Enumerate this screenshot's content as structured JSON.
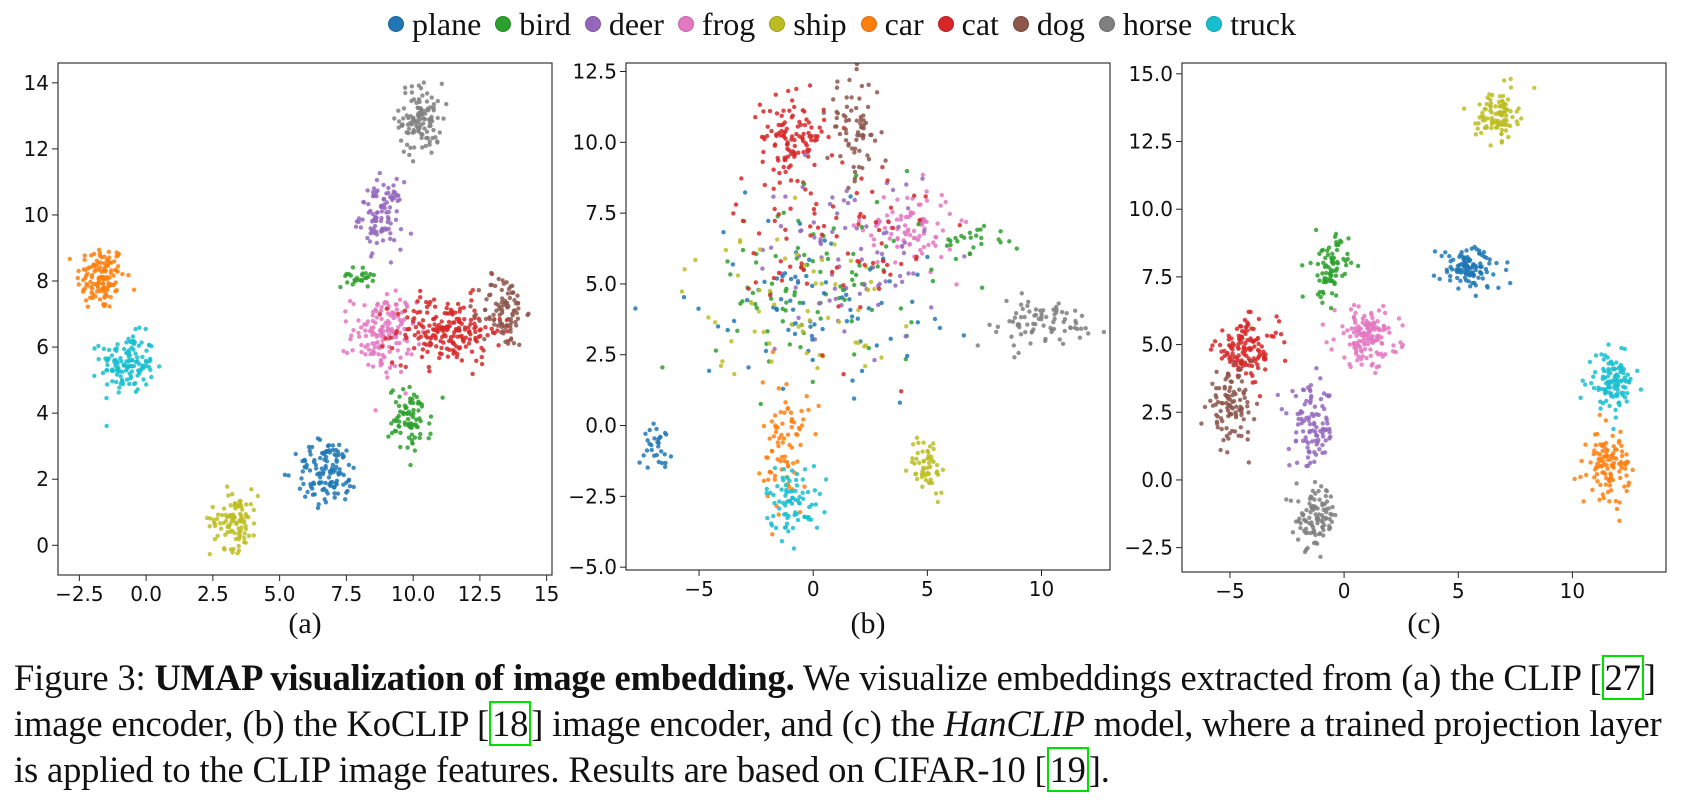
{
  "legend": {
    "classes": [
      {
        "name": "plane",
        "color": "#1f77b4"
      },
      {
        "name": "bird",
        "color": "#2ca02c"
      },
      {
        "name": "deer",
        "color": "#9467bd"
      },
      {
        "name": "frog",
        "color": "#e377c2"
      },
      {
        "name": "ship",
        "color": "#bcbd22"
      },
      {
        "name": "car",
        "color": "#ff7f0e"
      },
      {
        "name": "cat",
        "color": "#d62728"
      },
      {
        "name": "dog",
        "color": "#8c564b"
      },
      {
        "name": "horse",
        "color": "#7f7f7f"
      },
      {
        "name": "truck",
        "color": "#17becf"
      }
    ]
  },
  "chart_data": [
    {
      "type": "scatter",
      "panel_label": "(a)",
      "xlim": [
        -3.3,
        15.2
      ],
      "ylim": [
        -0.9,
        14.6
      ],
      "xticks": [
        -2.5,
        0.0,
        2.5,
        5.0,
        7.5,
        10.0,
        12.5,
        15.0
      ],
      "xtick_labels": [
        "−2.5",
        "0.0",
        "2.5",
        "5.0",
        "7.5",
        "10.0",
        "12.5",
        "15"
      ],
      "yticks": [
        0,
        2,
        4,
        6,
        8,
        10,
        12,
        14
      ],
      "ytick_labels": [
        "0",
        "2",
        "4",
        "6",
        "8",
        "10",
        "12",
        "14"
      ],
      "clusters": [
        {
          "class": "car",
          "cx": -1.7,
          "cy": 8.1,
          "sx": 0.45,
          "sy": 0.5,
          "n": 130
        },
        {
          "class": "truck",
          "cx": -0.7,
          "cy": 5.5,
          "sx": 0.5,
          "sy": 0.45,
          "n": 130
        },
        {
          "class": "horse",
          "cx": 10.3,
          "cy": 12.9,
          "sx": 0.4,
          "sy": 0.55,
          "n": 110
        },
        {
          "class": "deer",
          "cx": 8.8,
          "cy": 10.0,
          "sx": 0.4,
          "sy": 0.5,
          "n": 100
        },
        {
          "class": "bird",
          "cx": 9.9,
          "cy": 3.8,
          "sx": 0.4,
          "sy": 0.5,
          "n": 80
        },
        {
          "class": "bird",
          "cx": 7.9,
          "cy": 8.1,
          "sx": 0.3,
          "sy": 0.15,
          "n": 25
        },
        {
          "class": "frog",
          "cx": 8.9,
          "cy": 6.4,
          "sx": 0.6,
          "sy": 0.6,
          "n": 150
        },
        {
          "class": "cat",
          "cx": 11.3,
          "cy": 6.5,
          "sx": 1.0,
          "sy": 0.5,
          "n": 200
        },
        {
          "class": "dog",
          "cx": 13.4,
          "cy": 7.1,
          "sx": 0.4,
          "sy": 0.55,
          "n": 90
        },
        {
          "class": "plane",
          "cx": 6.8,
          "cy": 2.2,
          "sx": 0.6,
          "sy": 0.5,
          "n": 120
        },
        {
          "class": "ship",
          "cx": 3.3,
          "cy": 0.8,
          "sx": 0.45,
          "sy": 0.45,
          "n": 100
        }
      ]
    },
    {
      "type": "scatter",
      "panel_label": "(b)",
      "xlim": [
        -8.2,
        13.0
      ],
      "ylim": [
        -5.1,
        12.8
      ],
      "xticks": [
        -5,
        0,
        5,
        10
      ],
      "xtick_labels": [
        "−5",
        "0",
        "5",
        "10"
      ],
      "yticks": [
        -5.0,
        -2.5,
        0.0,
        2.5,
        5.0,
        7.5,
        10.0,
        12.5
      ],
      "ytick_labels": [
        "−5.0",
        "−2.5",
        "0.0",
        "2.5",
        "5.0",
        "7.5",
        "10.0",
        "12.5"
      ],
      "clusters": [
        {
          "class": "cat",
          "cx": -0.9,
          "cy": 10.2,
          "sx": 0.7,
          "sy": 0.7,
          "n": 110
        },
        {
          "class": "dog",
          "cx": 1.8,
          "cy": 10.5,
          "sx": 0.6,
          "sy": 0.9,
          "n": 70
        },
        {
          "class": "frog",
          "cx": 4.2,
          "cy": 7.0,
          "sx": 1.0,
          "sy": 0.7,
          "n": 90
        },
        {
          "class": "bird",
          "cx": 0.5,
          "cy": 5.0,
          "sx": 2.4,
          "sy": 1.6,
          "n": 90
        },
        {
          "class": "deer",
          "cx": 1.5,
          "cy": 6.0,
          "sx": 2.0,
          "sy": 1.5,
          "n": 80
        },
        {
          "class": "plane",
          "cx": 0.0,
          "cy": 4.5,
          "sx": 2.6,
          "sy": 1.5,
          "n": 80
        },
        {
          "class": "ship",
          "cx": -1.0,
          "cy": 4.3,
          "sx": 2.3,
          "sy": 1.3,
          "n": 60
        },
        {
          "class": "cat",
          "cx": 1.0,
          "cy": 6.5,
          "sx": 2.2,
          "sy": 2.0,
          "n": 80
        },
        {
          "class": "car",
          "cx": -1.2,
          "cy": -0.7,
          "sx": 0.5,
          "sy": 1.2,
          "n": 80
        },
        {
          "class": "truck",
          "cx": -0.9,
          "cy": -2.6,
          "sx": 0.6,
          "sy": 0.6,
          "n": 80
        },
        {
          "class": "horse",
          "cx": 9.8,
          "cy": 3.6,
          "sx": 1.5,
          "sy": 0.45,
          "n": 80
        },
        {
          "class": "plane",
          "cx": -6.8,
          "cy": -0.7,
          "sx": 0.3,
          "sy": 0.35,
          "n": 30
        },
        {
          "class": "ship",
          "cx": 5.0,
          "cy": -1.4,
          "sx": 0.4,
          "sy": 0.5,
          "n": 55
        },
        {
          "class": "bird",
          "cx": 7.1,
          "cy": 6.5,
          "sx": 0.7,
          "sy": 0.3,
          "n": 25
        }
      ]
    },
    {
      "type": "scatter",
      "panel_label": "(c)",
      "xlim": [
        -7.1,
        14.1
      ],
      "ylim": [
        -3.4,
        15.4
      ],
      "xticks": [
        -5,
        0,
        5,
        10
      ],
      "xtick_labels": [
        "−5",
        "0",
        "5",
        "10"
      ],
      "yticks": [
        -2.5,
        0.0,
        2.5,
        5.0,
        7.5,
        10.0,
        12.5,
        15.0
      ],
      "ytick_labels": [
        "−2.5",
        "0.0",
        "2.5",
        "5.0",
        "7.5",
        "10.0",
        "12.5",
        "15.0"
      ],
      "clusters": [
        {
          "class": "ship",
          "cx": 6.7,
          "cy": 13.5,
          "sx": 0.45,
          "sy": 0.45,
          "n": 100
        },
        {
          "class": "plane",
          "cx": 5.5,
          "cy": 7.8,
          "sx": 0.7,
          "sy": 0.4,
          "n": 110
        },
        {
          "class": "bird",
          "cx": -0.6,
          "cy": 7.8,
          "sx": 0.4,
          "sy": 0.6,
          "n": 80
        },
        {
          "class": "frog",
          "cx": 1.0,
          "cy": 5.3,
          "sx": 0.7,
          "sy": 0.55,
          "n": 140
        },
        {
          "class": "cat",
          "cx": -4.3,
          "cy": 4.8,
          "sx": 0.7,
          "sy": 0.55,
          "n": 130
        },
        {
          "class": "dog",
          "cx": -5.0,
          "cy": 2.7,
          "sx": 0.5,
          "sy": 0.6,
          "n": 100
        },
        {
          "class": "deer",
          "cx": -1.4,
          "cy": 1.9,
          "sx": 0.5,
          "sy": 0.75,
          "n": 100
        },
        {
          "class": "horse",
          "cx": -1.2,
          "cy": -1.4,
          "sx": 0.45,
          "sy": 0.55,
          "n": 100
        },
        {
          "class": "truck",
          "cx": 11.7,
          "cy": 3.6,
          "sx": 0.5,
          "sy": 0.5,
          "n": 110
        },
        {
          "class": "car",
          "cx": 11.6,
          "cy": 0.6,
          "sx": 0.45,
          "sy": 0.6,
          "n": 110
        }
      ]
    }
  ],
  "caption": {
    "fig_label": "Figure 3: ",
    "bold_title": "UMAP visualization of image embedding.",
    "text_1": " We visualize embeddings extracted from (a) the CLIP [",
    "cite_1": "27",
    "text_2": "] image encoder, (b) the KoCLIP [",
    "cite_2": "18",
    "text_3": "] image encoder, and (c) the ",
    "italic_model": "HanCLIP",
    "text_4": " model, where a trained projection layer is applied to the CLIP image features. Results are based on CIFAR-10 [",
    "cite_3": "19",
    "text_5": "]."
  }
}
